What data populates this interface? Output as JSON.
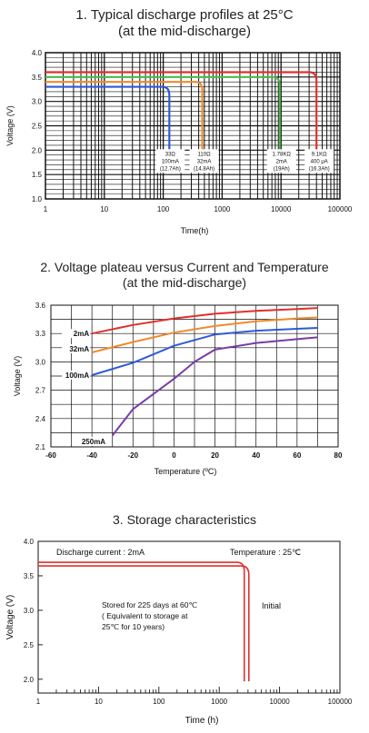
{
  "charts": [
    {
      "title_line1": "1. Typical discharge profiles at 25°C",
      "title_line2": "(at  the mid-discharge)",
      "xlabel": "Time(h)",
      "ylabel": "Voltage (V)",
      "y_ticks": [
        "4.0",
        "3.5",
        "3.0",
        "2.5",
        "2.0",
        "1.5",
        "1.0"
      ],
      "x_ticks": [
        "1",
        "10",
        "100",
        "1000",
        "10000",
        "100000"
      ]
    },
    {
      "title_line1": "2. Voltage plateau versus Current and Temperature",
      "title_line2": "(at the mid-discharge)",
      "xlabel": "Temperature (ºC)",
      "ylabel": "Voltage (V)",
      "y_ticks": [
        "3.6",
        "3.3",
        "3.0",
        "2.7",
        "2.4",
        "2.1"
      ],
      "x_ticks": [
        "-60",
        "-40",
        "-20",
        "0",
        "20",
        "40",
        "60",
        "80"
      ]
    },
    {
      "title_line1": "3. Storage characteristics",
      "xlabel": "Time (h)",
      "ylabel": "Voltage (V)",
      "y_ticks": [
        "4.0",
        "3.5",
        "3.0",
        "2.5",
        "2.0"
      ],
      "x_ticks": [
        "1",
        "10",
        "100",
        "1000",
        "10000",
        "100000"
      ],
      "annotations": {
        "current": "Discharge current : 2mA",
        "temperature": "Temperature : 25℃",
        "stored_1": "Stored for 225 days at 60℃",
        "stored_2": "( Equivalent to storage at",
        "stored_3": "25℃ for 10 years)",
        "initial": "Initial"
      }
    }
  ],
  "chart_data": [
    {
      "type": "line",
      "title": "1. Typical discharge profiles at 25°C (at  the mid-discharge)",
      "xlabel": "Time(h)",
      "ylabel": "Voltage (V)",
      "xscale": "log",
      "xlim": [
        1,
        100000
      ],
      "ylim": [
        1.0,
        4.0
      ],
      "grid": true,
      "series": [
        {
          "name": "33Ω 100mA (12.7Ah)",
          "color": "#2d5bd7",
          "plateau": 3.3,
          "end_time_h": 127,
          "end_voltage": 2.0,
          "label_lines": [
            "33Ω",
            "100mA",
            "(12.7Ah)"
          ]
        },
        {
          "name": "110Ω 32mA (14.8Ah)",
          "color": "#f08a2b",
          "plateau": 3.4,
          "end_time_h": 460,
          "end_voltage": 2.0,
          "label_lines": [
            "110Ω",
            "32mA",
            "(14.8Ah)"
          ]
        },
        {
          "name": "1.78KΩ 2mA (19Ah)",
          "color": "#4db84a",
          "plateau": 3.5,
          "end_time_h": 9500,
          "end_voltage": 2.0,
          "label_lines": [
            "1.78KΩ",
            "2mA",
            "(19Ah)"
          ]
        },
        {
          "name": "9.1KΩ 400 μA (16.3Ah)",
          "color": "#e0302d",
          "plateau": 3.6,
          "end_time_h": 40000,
          "end_voltage": 2.0,
          "label_lines": [
            "9.1KΩ",
            "400 μA",
            "(16.3Ah)"
          ]
        }
      ]
    },
    {
      "type": "line",
      "title": "2. Voltage plateau versus Current and Temperature (at the mid-discharge)",
      "xlabel": "Temperature (ºC)",
      "ylabel": "Voltage (V)",
      "xlim": [
        -60,
        80
      ],
      "ylim": [
        2.1,
        3.6
      ],
      "grid": true,
      "series": [
        {
          "name": "2mA",
          "color": "#e0302d",
          "x": [
            -40,
            -20,
            0,
            20,
            40,
            60,
            70
          ],
          "y": [
            3.3,
            3.39,
            3.46,
            3.51,
            3.54,
            3.56,
            3.57
          ]
        },
        {
          "name": "32mA",
          "color": "#f08a2b",
          "x": [
            -40,
            -20,
            0,
            20,
            40,
            60,
            70
          ],
          "y": [
            3.1,
            3.21,
            3.31,
            3.38,
            3.43,
            3.46,
            3.47
          ]
        },
        {
          "name": "100mA",
          "color": "#2d5bd7",
          "x": [
            -40,
            -20,
            0,
            20,
            40,
            60,
            70
          ],
          "y": [
            2.86,
            2.99,
            3.17,
            3.29,
            3.33,
            3.35,
            3.36
          ]
        },
        {
          "name": "250mA",
          "color": "#7a3aa8",
          "x": [
            -30,
            -20,
            0,
            10,
            20,
            40,
            60,
            70
          ],
          "y": [
            2.22,
            2.5,
            2.82,
            3.0,
            3.13,
            3.2,
            3.24,
            3.26
          ]
        }
      ]
    },
    {
      "type": "line",
      "title": "3. Storage characteristics",
      "xlabel": "Time (h)",
      "ylabel": "Voltage (V)",
      "xscale": "log",
      "xlim": [
        1,
        100000
      ],
      "ylim": [
        1.8,
        4.0
      ],
      "grid": false,
      "series": [
        {
          "name": "Stored for 225 days at 60℃",
          "color": "#e0302d",
          "plateau": 3.67,
          "end_time_h": 2600,
          "end_voltage": 1.97
        },
        {
          "name": "Initial",
          "color": "#e0302d",
          "plateau": 3.67,
          "end_time_h": 3100,
          "end_voltage": 1.97
        }
      ]
    }
  ]
}
